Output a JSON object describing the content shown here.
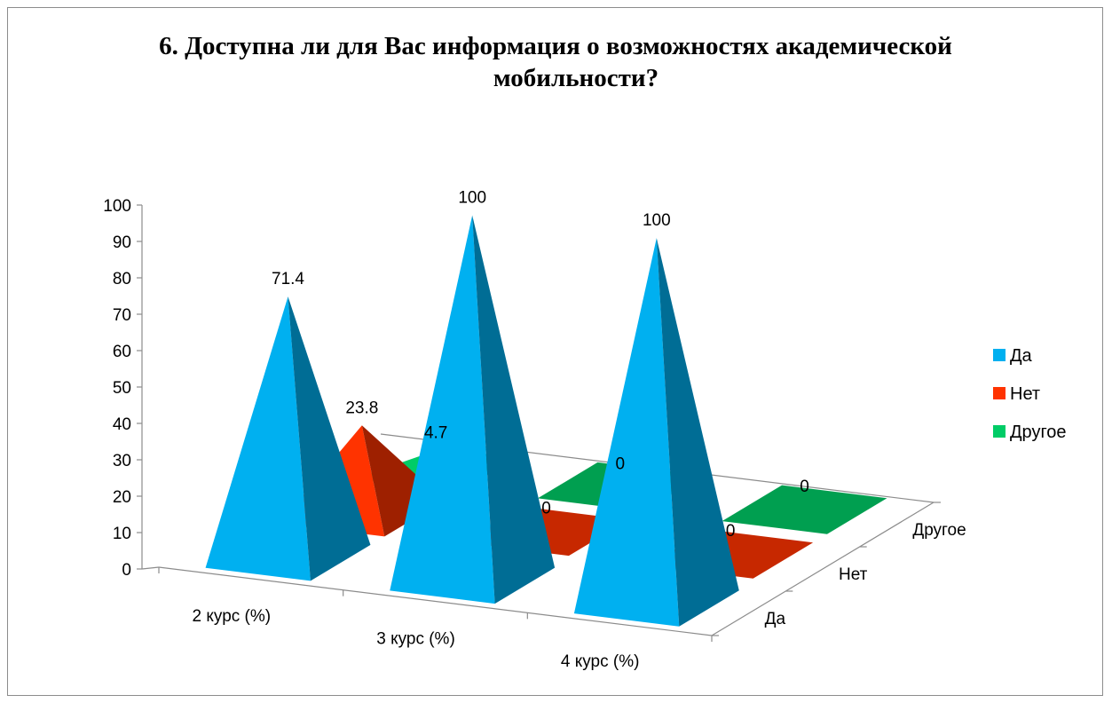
{
  "chart_data": {
    "type": "bar",
    "subtype": "3d-pyramid",
    "title_lines": [
      "6. Доступна ли для Вас информация о возможностях академической",
      "мобильности?"
    ],
    "categories": [
      "2 курс (%)",
      "3 курс (%)",
      "4 курс (%)"
    ],
    "depth_categories": [
      "Да",
      "Нет",
      "Другое"
    ],
    "series": [
      {
        "name": "Да",
        "values": [
          71.4,
          100,
          100
        ],
        "color": "#00B0F0"
      },
      {
        "name": "Нет",
        "values": [
          23.8,
          0,
          0
        ],
        "color": "#FF3300"
      },
      {
        "name": "Другое",
        "values": [
          4.7,
          0,
          0
        ],
        "color": "#00CC66"
      }
    ],
    "data_labels": [
      [
        "71.4",
        "100",
        "100"
      ],
      [
        "23.8",
        "0",
        "0"
      ],
      [
        "4.7",
        "0",
        "0"
      ]
    ],
    "y_ticks": [
      "0",
      "10",
      "20",
      "30",
      "40",
      "50",
      "60",
      "70",
      "80",
      "90",
      "100"
    ],
    "ylim": [
      0,
      100
    ],
    "legend_position": "right",
    "grid": false
  }
}
